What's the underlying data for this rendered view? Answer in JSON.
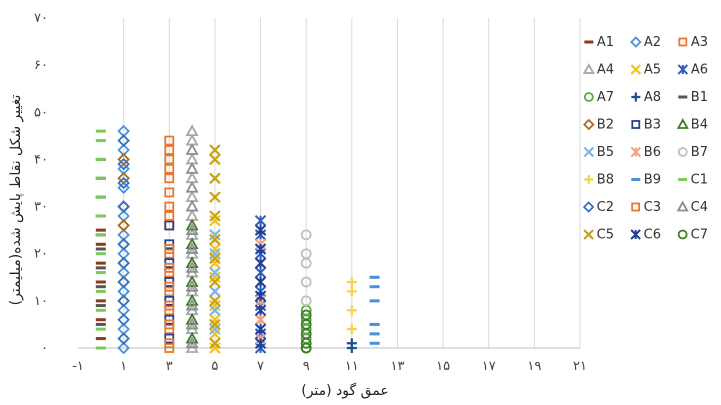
{
  "chart_data": {
    "type": "scatter",
    "xlabel": "عمق گود (متر)",
    "ylabel": "تغییر شکل نقاط پایش شده(میلیمتر)",
    "x_ticks": [
      "-۱",
      "۱",
      "۳",
      "۵",
      "۷",
      "۹",
      "۱۱",
      "۱۳",
      "۱۵",
      "۱۷",
      "۱۹",
      "۲۱"
    ],
    "y_ticks": [
      "۰",
      "۱۰",
      "۲۰",
      "۳۰",
      "۴۰",
      "۵۰",
      "۶۰",
      "۷۰"
    ],
    "xlim": [
      -1,
      21
    ],
    "ylim": [
      0,
      70
    ],
    "grid": "vertical",
    "legend_position": "right",
    "series": [
      {
        "name": "A1",
        "color": "#8B3A1A",
        "marker": "dash",
        "points": [
          [
            0,
            2
          ],
          [
            0,
            6
          ],
          [
            0,
            10
          ],
          [
            0,
            14
          ],
          [
            0,
            18
          ],
          [
            0,
            22
          ],
          [
            0,
            25
          ]
        ]
      },
      {
        "name": "A2",
        "color": "#4A90D9",
        "marker": "diamond",
        "points": [
          [
            1,
            0
          ],
          [
            1,
            4
          ],
          [
            1,
            8
          ],
          [
            1,
            12
          ],
          [
            1,
            16
          ],
          [
            1,
            20
          ],
          [
            1,
            24
          ],
          [
            1,
            28
          ],
          [
            1,
            34
          ],
          [
            1,
            38
          ],
          [
            1,
            42
          ],
          [
            1,
            46
          ]
        ]
      },
      {
        "name": "A3",
        "color": "#E8772E",
        "marker": "square",
        "points": [
          [
            3,
            0
          ],
          [
            3,
            4
          ],
          [
            3,
            8
          ],
          [
            3,
            12
          ],
          [
            3,
            16
          ],
          [
            3,
            20
          ],
          [
            3,
            26
          ],
          [
            3,
            30
          ],
          [
            3,
            36
          ],
          [
            3,
            40
          ],
          [
            3,
            44
          ]
        ]
      },
      {
        "name": "A4",
        "color": "#A6A6A6",
        "marker": "triangle",
        "points": [
          [
            4,
            0
          ],
          [
            4,
            4
          ],
          [
            4,
            8
          ],
          [
            4,
            12
          ],
          [
            4,
            16
          ],
          [
            4,
            20
          ],
          [
            4,
            24
          ],
          [
            4,
            28
          ],
          [
            4,
            32
          ],
          [
            4,
            36
          ],
          [
            4,
            40
          ],
          [
            4,
            44
          ],
          [
            4,
            46
          ]
        ]
      },
      {
        "name": "A5",
        "color": "#F2C318",
        "marker": "x",
        "points": [
          [
            5,
            0
          ],
          [
            5,
            3
          ],
          [
            5,
            6
          ],
          [
            5,
            9
          ],
          [
            5,
            12
          ],
          [
            5,
            15
          ],
          [
            5,
            18
          ],
          [
            5,
            21
          ],
          [
            5,
            24
          ],
          [
            5,
            27
          ]
        ]
      },
      {
        "name": "A6",
        "color": "#2E5FB8",
        "marker": "star",
        "points": [
          [
            7,
            0
          ],
          [
            7,
            3
          ],
          [
            7,
            6
          ],
          [
            7,
            9
          ],
          [
            7,
            12
          ],
          [
            7,
            16
          ],
          [
            7,
            20
          ],
          [
            7,
            24
          ],
          [
            7,
            27
          ]
        ]
      },
      {
        "name": "A7",
        "color": "#5BA83C",
        "marker": "circle",
        "points": [
          [
            9,
            0
          ],
          [
            9,
            2
          ],
          [
            9,
            4
          ],
          [
            9,
            6
          ],
          [
            9,
            8
          ]
        ]
      },
      {
        "name": "A8",
        "color": "#1F4E8C",
        "marker": "plus",
        "points": [
          [
            11,
            0
          ],
          [
            11,
            1
          ]
        ]
      },
      {
        "name": "B1",
        "color": "#555555",
        "marker": "dash",
        "points": [
          [
            0,
            5
          ],
          [
            0,
            9
          ],
          [
            0,
            13
          ],
          [
            0,
            17
          ],
          [
            0,
            21
          ],
          [
            0,
            24
          ],
          [
            0,
            28
          ],
          [
            0,
            32
          ],
          [
            0,
            36
          ],
          [
            0,
            40
          ]
        ]
      },
      {
        "name": "B2",
        "color": "#A66A1A",
        "marker": "diamond",
        "points": [
          [
            1,
            10
          ],
          [
            1,
            14
          ],
          [
            1,
            18
          ],
          [
            1,
            22
          ],
          [
            1,
            26
          ],
          [
            1,
            30
          ],
          [
            1,
            36
          ],
          [
            1,
            40
          ]
        ]
      },
      {
        "name": "B3",
        "color": "#24408E",
        "marker": "square",
        "points": [
          [
            3,
            2
          ],
          [
            3,
            6
          ],
          [
            3,
            10
          ],
          [
            3,
            14
          ],
          [
            3,
            18
          ],
          [
            3,
            22
          ],
          [
            3,
            26
          ]
        ]
      },
      {
        "name": "B4",
        "color": "#3E7B27",
        "marker": "triangle",
        "points": [
          [
            4,
            2
          ],
          [
            4,
            6
          ],
          [
            4,
            10
          ],
          [
            4,
            14
          ],
          [
            4,
            18
          ],
          [
            4,
            22
          ],
          [
            4,
            26
          ]
        ]
      },
      {
        "name": "B5",
        "color": "#7FB8E8",
        "marker": "x",
        "points": [
          [
            5,
            4
          ],
          [
            5,
            8
          ],
          [
            5,
            12
          ],
          [
            5,
            16
          ],
          [
            5,
            20
          ],
          [
            5,
            24
          ]
        ]
      },
      {
        "name": "B6",
        "color": "#F4A07A",
        "marker": "star",
        "points": [
          [
            7,
            2
          ],
          [
            7,
            6
          ],
          [
            7,
            10
          ],
          [
            7,
            14
          ],
          [
            7,
            18
          ],
          [
            7,
            22
          ]
        ]
      },
      {
        "name": "B7",
        "color": "#BFBFBF",
        "marker": "circle",
        "points": [
          [
            9,
            10
          ],
          [
            9,
            14
          ],
          [
            9,
            18
          ],
          [
            9,
            20
          ],
          [
            9,
            24
          ]
        ]
      },
      {
        "name": "B8",
        "color": "#F7D24B",
        "marker": "plus",
        "points": [
          [
            11,
            4
          ],
          [
            11,
            8
          ],
          [
            11,
            12
          ],
          [
            11,
            14
          ]
        ]
      },
      {
        "name": "B9",
        "color": "#4A90D9",
        "marker": "dash",
        "points": [
          [
            12,
            1
          ],
          [
            12,
            3
          ],
          [
            12,
            5
          ],
          [
            12,
            10
          ],
          [
            12,
            13
          ],
          [
            12,
            15
          ]
        ]
      },
      {
        "name": "C1",
        "color": "#7CC95A",
        "marker": "dash",
        "points": [
          [
            0,
            0
          ],
          [
            0,
            4
          ],
          [
            0,
            8
          ],
          [
            0,
            12
          ],
          [
            0,
            16
          ],
          [
            0,
            20
          ],
          [
            0,
            24
          ],
          [
            0,
            28
          ],
          [
            0,
            32
          ],
          [
            0,
            36
          ],
          [
            0,
            40
          ],
          [
            0,
            44
          ],
          [
            0,
            46
          ]
        ]
      },
      {
        "name": "C2",
        "color": "#2E75C9",
        "marker": "diamond",
        "points": [
          [
            1,
            2
          ],
          [
            1,
            6
          ],
          [
            1,
            10
          ],
          [
            1,
            14
          ],
          [
            1,
            18
          ],
          [
            1,
            22
          ],
          [
            1,
            30
          ],
          [
            1,
            35
          ],
          [
            1,
            39
          ],
          [
            1,
            44
          ]
        ]
      },
      {
        "name": "C3",
        "color": "#E8772E",
        "marker": "square",
        "points": [
          [
            3,
            1
          ],
          [
            3,
            5
          ],
          [
            3,
            9
          ],
          [
            3,
            13
          ],
          [
            3,
            17
          ],
          [
            3,
            21
          ],
          [
            3,
            28
          ],
          [
            3,
            33
          ],
          [
            3,
            38
          ],
          [
            3,
            42
          ]
        ]
      },
      {
        "name": "C4",
        "color": "#8C8C8C",
        "marker": "triangle",
        "points": [
          [
            4,
            1
          ],
          [
            4,
            5
          ],
          [
            4,
            9
          ],
          [
            4,
            13
          ],
          [
            4,
            17
          ],
          [
            4,
            21
          ],
          [
            4,
            25
          ],
          [
            4,
            30
          ],
          [
            4,
            34
          ],
          [
            4,
            38
          ],
          [
            4,
            42
          ]
        ]
      },
      {
        "name": "C5",
        "color": "#C9A20E",
        "marker": "x",
        "points": [
          [
            5,
            1
          ],
          [
            5,
            5
          ],
          [
            5,
            10
          ],
          [
            5,
            14
          ],
          [
            5,
            19
          ],
          [
            5,
            23
          ],
          [
            5,
            28
          ],
          [
            5,
            32
          ],
          [
            5,
            36
          ],
          [
            5,
            40
          ],
          [
            5,
            42
          ]
        ]
      },
      {
        "name": "C6",
        "color": "#1F3F99",
        "marker": "star",
        "points": [
          [
            7,
            1
          ],
          [
            7,
            4
          ],
          [
            7,
            8
          ],
          [
            7,
            11
          ],
          [
            7,
            14
          ],
          [
            7,
            18
          ],
          [
            7,
            21
          ],
          [
            7,
            25
          ]
        ]
      },
      {
        "name": "C7",
        "color": "#3E7B27",
        "marker": "circle",
        "points": [
          [
            9,
            0
          ],
          [
            9,
            1
          ],
          [
            9,
            3
          ],
          [
            9,
            5
          ],
          [
            9,
            7
          ]
        ]
      }
    ]
  }
}
